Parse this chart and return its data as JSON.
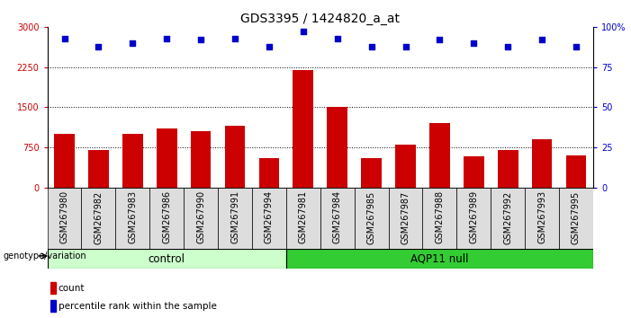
{
  "title": "GDS3395 / 1424820_a_at",
  "categories": [
    "GSM267980",
    "GSM267982",
    "GSM267983",
    "GSM267986",
    "GSM267990",
    "GSM267991",
    "GSM267994",
    "GSM267981",
    "GSM267984",
    "GSM267985",
    "GSM267987",
    "GSM267988",
    "GSM267989",
    "GSM267992",
    "GSM267993",
    "GSM267995"
  ],
  "bar_values": [
    1010,
    700,
    1010,
    1100,
    1060,
    1150,
    550,
    2200,
    1500,
    550,
    800,
    1200,
    580,
    700,
    900,
    600
  ],
  "percentile_values": [
    93,
    88,
    90,
    93,
    92,
    93,
    88,
    97,
    93,
    88,
    88,
    92,
    90,
    88,
    92,
    88
  ],
  "bar_color": "#cc0000",
  "dot_color": "#0000cc",
  "ylim_left": [
    0,
    3000
  ],
  "ylim_right": [
    0,
    100
  ],
  "yticks_left": [
    0,
    750,
    1500,
    2250,
    3000
  ],
  "yticks_right": [
    0,
    25,
    50,
    75,
    100
  ],
  "control_count": 7,
  "aqp11_count": 9,
  "group_labels": [
    "control",
    "AQP11 null"
  ],
  "control_bg": "#ccffcc",
  "aqp11_bg": "#33cc33",
  "legend_count_label": "count",
  "legend_pct_label": "percentile rank within the sample",
  "background_color": "#ffffff",
  "plot_bg": "#ffffff",
  "title_fontsize": 10,
  "tick_label_fontsize": 7,
  "bar_width": 0.6
}
